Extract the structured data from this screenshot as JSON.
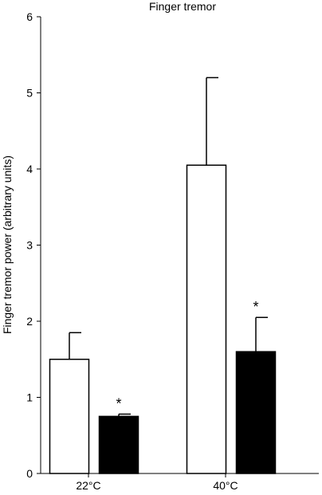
{
  "chart_data": {
    "type": "bar",
    "title": "Finger tremor",
    "xlabel": "",
    "ylabel": "Finger tremor power (arbitrary units)",
    "ylim": [
      0,
      6
    ],
    "yticks": [
      0,
      1,
      2,
      3,
      4,
      5,
      6
    ],
    "categories": [
      "22°C",
      "40°C"
    ],
    "series": [
      {
        "fill": "#ffffff",
        "values": [
          1.5,
          4.05
        ],
        "error": [
          0.35,
          1.15
        ],
        "significance": [
          "",
          ""
        ]
      },
      {
        "fill": "#000000",
        "values": [
          0.75,
          1.6
        ],
        "error": [
          0.03,
          0.45
        ],
        "significance": [
          "*",
          "*"
        ]
      }
    ],
    "grid": false,
    "legend": "none"
  }
}
